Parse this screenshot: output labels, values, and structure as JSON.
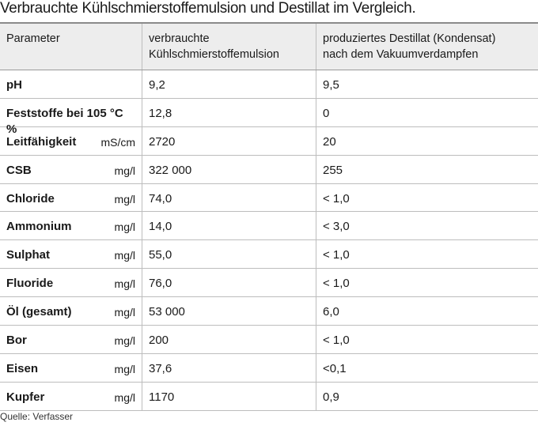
{
  "title": "Verbrauchte Kühlschmierstoffemulsion und Destillat im Vergleich.",
  "headers": {
    "param": "Parameter",
    "col2_line1": "verbrauchte",
    "col2_line2": "Kühlschmierstoffemulsion",
    "col3_line1": "produziertes Destillat (Kondensat)",
    "col3_line2": "nach dem Vakuumverdampfen"
  },
  "rows": [
    {
      "name": "pH",
      "unit": "",
      "emulsion": "9,2",
      "destillat": "9,5"
    },
    {
      "name": "Feststoffe bei 105 °C %",
      "unit": "",
      "emulsion": "12,8",
      "destillat": "0"
    },
    {
      "name": "Leitfähigkeit",
      "unit": "mS/cm",
      "emulsion": "2720",
      "destillat": "20"
    },
    {
      "name": "CSB",
      "unit": "mg/l",
      "emulsion": "322 000",
      "destillat": "255"
    },
    {
      "name": "Chloride",
      "unit": "mg/l",
      "emulsion": "74,0",
      "destillat": "< 1,0"
    },
    {
      "name": "Ammonium",
      "unit": "mg/l",
      "emulsion": "14,0",
      "destillat": "< 3,0"
    },
    {
      "name": "Sulphat",
      "unit": "mg/l",
      "emulsion": "55,0",
      "destillat": "< 1,0"
    },
    {
      "name": "Fluoride",
      "unit": "mg/l",
      "emulsion": "76,0",
      "destillat": "< 1,0"
    },
    {
      "name": "Öl (gesamt)",
      "unit": "mg/l",
      "emulsion": "53 000",
      "destillat": "6,0"
    },
    {
      "name": "Bor",
      "unit": "mg/l",
      "emulsion": "200",
      "destillat": "< 1,0"
    },
    {
      "name": "Eisen",
      "unit": "mg/l",
      "emulsion": "37,6",
      "destillat": "<0,1"
    },
    {
      "name": "Kupfer",
      "unit": "mg/l",
      "emulsion": "1170",
      "destillat": "0,9"
    }
  ],
  "source": "Quelle: Verfasser"
}
